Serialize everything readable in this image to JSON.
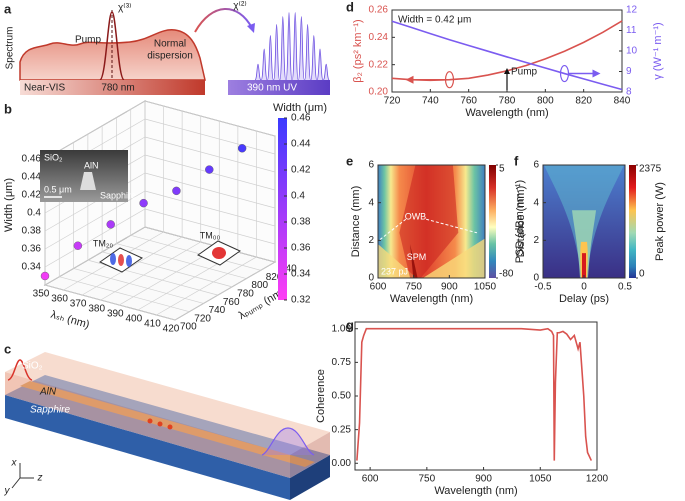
{
  "figure": {
    "panel_labels": [
      "a",
      "b",
      "c",
      "d",
      "e",
      "f",
      "g"
    ]
  },
  "diagram_a": {
    "axis_label": "Spectrum",
    "pump": "Pump",
    "chi3": "χ⁽³⁾",
    "normal_dispersion": [
      "Normal",
      "dispersion"
    ],
    "chi2": "χ⁽²⁾",
    "near_vis": "Near-VIS",
    "pump_wavelength": "780 nm",
    "uv": "390 nm UV"
  },
  "diagram_c": {
    "cladding": "SiO₂",
    "core": "AlN",
    "substrate": "Sapphire",
    "axes": [
      "x",
      "y",
      "z"
    ]
  },
  "chart_data": [
    {
      "type": "scatter3d",
      "x_label": "λₛₕ (nm)",
      "y_label": "λₚᵤₘₚ (nm)",
      "z_label": "Width (μm)",
      "x": [
        350,
        360,
        370,
        380,
        390,
        400,
        410
      ],
      "y": [
        700,
        720,
        740,
        760,
        780,
        800,
        820
      ],
      "z": [
        0.33,
        0.36,
        0.38,
        0.4,
        0.41,
        0.43,
        0.45
      ],
      "xlim": [
        350,
        420
      ],
      "xticks": [
        350,
        360,
        370,
        380,
        390,
        400,
        410,
        420
      ],
      "ylim": [
        700,
        840
      ],
      "yticks": [
        700,
        720,
        740,
        760,
        780,
        800,
        820,
        840
      ],
      "zlim": [
        0.32,
        0.46
      ],
      "zticks": [
        0.34,
        0.36,
        0.38,
        0.4,
        0.42,
        0.44,
        0.46
      ],
      "colorbar": {
        "label": "Width (μm)",
        "lim": [
          0.32,
          0.46
        ],
        "ticks": [
          0.32,
          0.34,
          0.36,
          0.38,
          0.4,
          0.42,
          0.44,
          0.46
        ],
        "colors": [
          "#ff3cf5",
          "#3a3aff"
        ]
      },
      "annotations": [
        "SiO₂",
        "AlN",
        "0.5 μm",
        "Sapphire",
        "TM₂₀",
        "TM₀₀"
      ]
    },
    {
      "type": "line",
      "x_label": "Wavelength (nm)",
      "y_label": "β₂ (ps² km⁻¹)",
      "y2_label": "γ (W⁻¹ m⁻¹)",
      "x": [
        720,
        730,
        740,
        750,
        760,
        770,
        780,
        790,
        800,
        810,
        820,
        830,
        840
      ],
      "xlim": [
        720,
        840
      ],
      "xticks": [
        720,
        740,
        760,
        780,
        800,
        820,
        840
      ],
      "ylim": [
        0.2,
        0.26
      ],
      "yticks": [
        {
          "value": 0.2,
          "label": "0.20"
        },
        0.22,
        0.24,
        0.26
      ],
      "y2lim": [
        8,
        12
      ],
      "y2ticks": [
        8,
        9,
        10,
        11,
        12
      ],
      "series": [
        {
          "color": "#d9534f",
          "values": [
            0.21,
            0.209,
            0.2085,
            0.209,
            0.21,
            0.2124,
            0.2155,
            0.2194,
            0.2242,
            0.2298,
            0.2363,
            0.2437,
            0.252
          ]
        },
        {
          "color": "#7b5cf0",
          "axis": "y2",
          "values": [
            11.45,
            11.15,
            10.85,
            10.55,
            10.27,
            9.99,
            9.71,
            9.44,
            9.17,
            8.9,
            8.64,
            8.38,
            8.12
          ]
        }
      ],
      "annotations": [
        "Width = 0.42 μm",
        "Pump"
      ]
    },
    {
      "type": "heatmap",
      "x_label": "Wavelength (nm)",
      "y_label": "Distance (mm)",
      "xlim": [
        600,
        1050
      ],
      "xticks": [
        600,
        750,
        900,
        1050
      ],
      "ylim": [
        0,
        6
      ],
      "yticks": [
        0,
        2,
        4,
        6
      ],
      "colorbar": {
        "label": "PSD (dBm nm⁻¹)",
        "lim": [
          -80,
          5
        ],
        "ticks": [
          -80,
          5
        ]
      },
      "annotations": [
        "OWB",
        "SPM",
        "237 pJ"
      ]
    },
    {
      "type": "heatmap",
      "x_label": "Delay (ps)",
      "y_label": "Distance (mm)",
      "xlim": [
        -0.5,
        0.5
      ],
      "xticks": [
        -0.5,
        0,
        0.5
      ],
      "ylim": [
        0,
        6
      ],
      "yticks": [
        0,
        2,
        4,
        6
      ],
      "colorbar": {
        "label": "Peak power (W)",
        "lim": [
          0,
          2375
        ],
        "ticks": [
          0,
          2375
        ]
      }
    },
    {
      "type": "line",
      "x_label": "Wavelength (nm)",
      "y_label": "Coherence",
      "x": [
        565,
        572,
        578,
        583,
        590,
        600,
        700,
        800,
        900,
        1000,
        1050,
        1070,
        1080,
        1085,
        1087,
        1090,
        1095,
        1100,
        1110,
        1120,
        1130,
        1140,
        1150,
        1155,
        1160,
        1165,
        1170,
        1175,
        1185
      ],
      "xlim": [
        560,
        1200
      ],
      "xticks": [
        600,
        750,
        900,
        1050,
        1200
      ],
      "ylim": [
        -0.05,
        1.05
      ],
      "yticks": [
        {
          "value": 0,
          "label": "0.00"
        },
        {
          "value": 0.25,
          "label": "0.25"
        },
        {
          "value": 0.5,
          "label": "0.50"
        },
        {
          "value": 0.75,
          "label": "0.75"
        },
        {
          "value": 1,
          "label": "1.00"
        }
      ],
      "series": [
        {
          "color": "#d9534f",
          "values": [
            0.02,
            0.3,
            0.9,
            0.95,
            1,
            1,
            1,
            1,
            1,
            1,
            0.99,
            1,
            0.98,
            0.95,
            0.02,
            0.6,
            0.97,
            0.97,
            0.98,
            0.96,
            0.92,
            0.95,
            0.85,
            0.9,
            0.7,
            0.5,
            0.2,
            0.08,
            0.02
          ]
        }
      ]
    }
  ]
}
